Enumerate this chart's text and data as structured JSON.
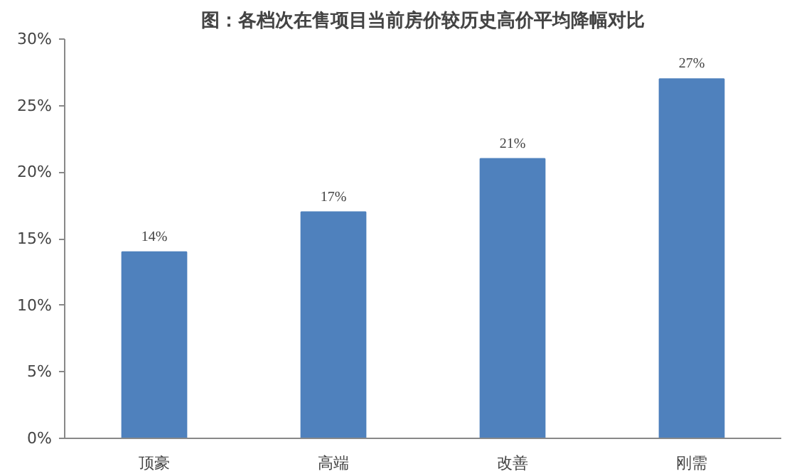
{
  "chart_data": {
    "type": "bar",
    "title": "图：各档次在售项目当前房价较历史高价平均降幅对比",
    "categories": [
      "顶豪",
      "高端",
      "改善",
      "刚需"
    ],
    "values": [
      14,
      17,
      21,
      27
    ],
    "color": "#4f81bd",
    "value_labels": [
      "14%",
      "17%",
      "21%",
      "27%"
    ],
    "ylim": [
      0,
      30
    ],
    "yticks": [
      {
        "value": 0,
        "label": "0%"
      },
      {
        "value": 5,
        "label": "5%"
      },
      {
        "value": 10,
        "label": "10%"
      },
      {
        "value": 15,
        "label": "15%"
      },
      {
        "value": 20,
        "label": "20%"
      },
      {
        "value": 25,
        "label": "25%"
      },
      {
        "value": 30,
        "label": "30%"
      }
    ],
    "grid": false
  }
}
